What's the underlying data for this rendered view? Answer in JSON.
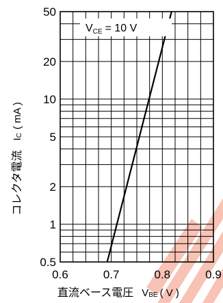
{
  "chart_data": {
    "type": "line",
    "title": "",
    "xlabel": {
      "main": "直流ベース電圧",
      "symbol": "V",
      "subscript": "BE",
      "unit": "( V )"
    },
    "ylabel": {
      "main": "コレクタ電流",
      "symbol": "I",
      "subscript": "C",
      "unit": "( mA )"
    },
    "xlim": [
      0.6,
      0.9
    ],
    "ylim": [
      0.5,
      50
    ],
    "yscale": "log",
    "grid": true,
    "xticks": [
      0.6,
      0.7,
      0.8,
      0.9
    ],
    "xtick_labels": [
      "0.6",
      "0.7",
      "0.8",
      "0.9"
    ],
    "yticks": [
      0.5,
      1,
      2,
      5,
      10,
      20,
      50
    ],
    "ytick_labels": [
      "0.5",
      "1",
      "2",
      "5",
      "10",
      "20",
      "50"
    ],
    "annotation": {
      "symbol": "V",
      "subscript": "CE",
      "text": "= 10 V"
    },
    "series": [
      {
        "x": [
          0.692,
          0.818
        ],
        "y": [
          0.5,
          50
        ]
      }
    ]
  },
  "colors": {
    "line": "#000000",
    "grid": "#000000",
    "watermark": "#f7b8a8"
  },
  "watermark": {
    "icon": "diagonal-stripes-watermark"
  }
}
